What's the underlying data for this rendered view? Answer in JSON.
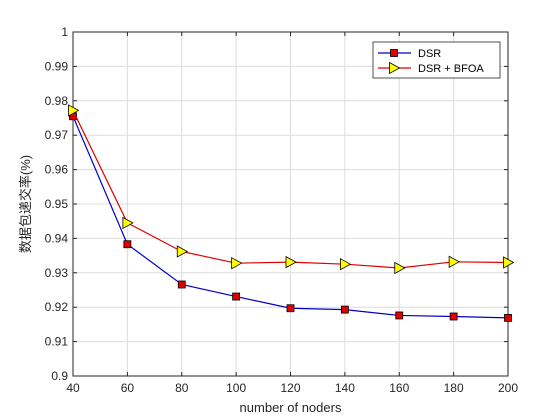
{
  "chart_data": {
    "type": "line",
    "xlabel": "number of noders",
    "ylabel": "数据包递交率(%)",
    "x": [
      40,
      60,
      80,
      100,
      120,
      140,
      160,
      180,
      200
    ],
    "xlim": [
      40,
      200
    ],
    "ylim": [
      0.9,
      1.0
    ],
    "xticks": [
      "40",
      "60",
      "80",
      "100",
      "120",
      "140",
      "160",
      "180",
      "200"
    ],
    "yticks": [
      "0.9",
      "0.91",
      "0.92",
      "0.93",
      "0.94",
      "0.95",
      "0.96",
      "0.97",
      "0.98",
      "0.99",
      "1"
    ],
    "grid": true,
    "legend_position": "top-right",
    "series": [
      {
        "name": "DSR",
        "values": [
          0.9755,
          0.9383,
          0.9266,
          0.9231,
          0.9197,
          0.9193,
          0.9176,
          0.9173,
          0.9169
        ],
        "color": "#0000cc",
        "marker": "square",
        "marker_color": "#e00000"
      },
      {
        "name": "DSR + BFOA",
        "values": [
          0.9772,
          0.9445,
          0.9362,
          0.9328,
          0.9331,
          0.9325,
          0.9314,
          0.9332,
          0.933
        ],
        "color": "#e00000",
        "marker": "triangle-right",
        "marker_color": "#ffff00"
      }
    ]
  }
}
